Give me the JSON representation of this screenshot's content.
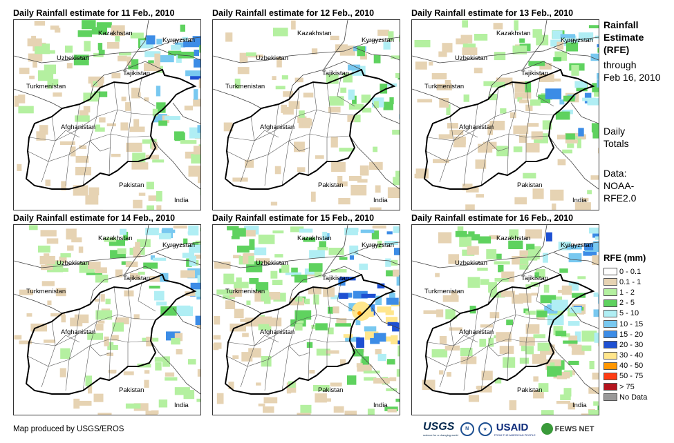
{
  "panels": [
    {
      "title": "Daily Rainfall estimate for 11 Feb., 2010",
      "intensity": 1.2
    },
    {
      "title": "Daily Rainfall estimate for 12 Feb., 2010",
      "intensity": 0.7
    },
    {
      "title": "Daily Rainfall estimate for 13 Feb., 2010",
      "intensity": 1.0
    },
    {
      "title": "Daily Rainfall estimate for 14 Feb., 2010",
      "intensity": 1.1
    },
    {
      "title": "Daily Rainfall estimate for 15 Feb., 2010",
      "intensity": 1.6
    },
    {
      "title": "Daily Rainfall estimate for 16 Feb., 2010",
      "intensity": 1.3
    }
  ],
  "country_labels": [
    "Kazakhstan",
    "Kyrgyzstan",
    "Uzbekistan",
    "Tajikistan",
    "Turkmenistan",
    "Afghanistan",
    "Pakistan",
    "India"
  ],
  "side": {
    "title_lines": [
      "Rainfall",
      "Estimate",
      "(RFE)"
    ],
    "through_lines": [
      "through",
      "Feb 16, 2010"
    ],
    "totals_lines": [
      "Daily",
      "Totals"
    ],
    "source_lines": [
      "Data:",
      "NOAA-",
      "RFE2.0"
    ]
  },
  "legend": {
    "title": "RFE (mm)",
    "items": [
      {
        "label": "0 - 0.1",
        "color": "#ffffff"
      },
      {
        "label": "0.1 - 1",
        "color": "#e6d3b3"
      },
      {
        "label": "1 - 2",
        "color": "#b4f0a0"
      },
      {
        "label": "2 - 5",
        "color": "#5fd25f"
      },
      {
        "label": "5 - 10",
        "color": "#b0eef4"
      },
      {
        "label": "10 - 15",
        "color": "#78c8f0"
      },
      {
        "label": "15 - 20",
        "color": "#3c8ce6"
      },
      {
        "label": "20 - 30",
        "color": "#1e50d2"
      },
      {
        "label": "30 - 40",
        "color": "#ffe68c"
      },
      {
        "label": "40 - 50",
        "color": "#ff9600"
      },
      {
        "label": "50 - 75",
        "color": "#ff3c14"
      },
      {
        "label": "> 75",
        "color": "#b4141e"
      },
      {
        "label": "No Data",
        "color": "#999999"
      }
    ]
  },
  "footer": {
    "credit": "Map produced by USGS/EROS",
    "logos": {
      "usgs": "USGS",
      "usgs_tagline": "science for a changing world",
      "usaid": "USAID",
      "usaid_tagline": "FROM THE AMERICAN PEOPLE",
      "fews": "FEWS NET"
    }
  }
}
